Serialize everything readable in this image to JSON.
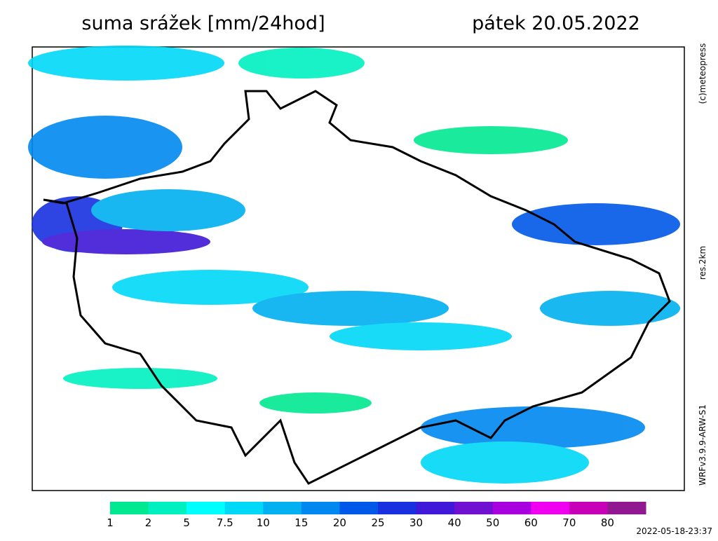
{
  "header": {
    "title": "suma srážek [mm/24hod]",
    "date": "pátek 20.05.2022"
  },
  "side_labels": {
    "copyright": "(c)meteopress",
    "resolution": "res.2km",
    "model": "WRFv3.9.9-ARW-S1"
  },
  "legend": {
    "thresholds": [
      1,
      2,
      5,
      7.5,
      10,
      15,
      20,
      25,
      30,
      40,
      50,
      60,
      70,
      80
    ],
    "colors": [
      "#00e890",
      "#00f0c0",
      "#00ffff",
      "#00d8f8",
      "#00b0f0",
      "#0088f0",
      "#0058e8",
      "#1830e0",
      "#4018d8",
      "#7010d0",
      "#a800e0",
      "#f000f0",
      "#c800b8",
      "#901890"
    ]
  },
  "footer": {
    "timestamp": "2022-05-18-23:37"
  }
}
